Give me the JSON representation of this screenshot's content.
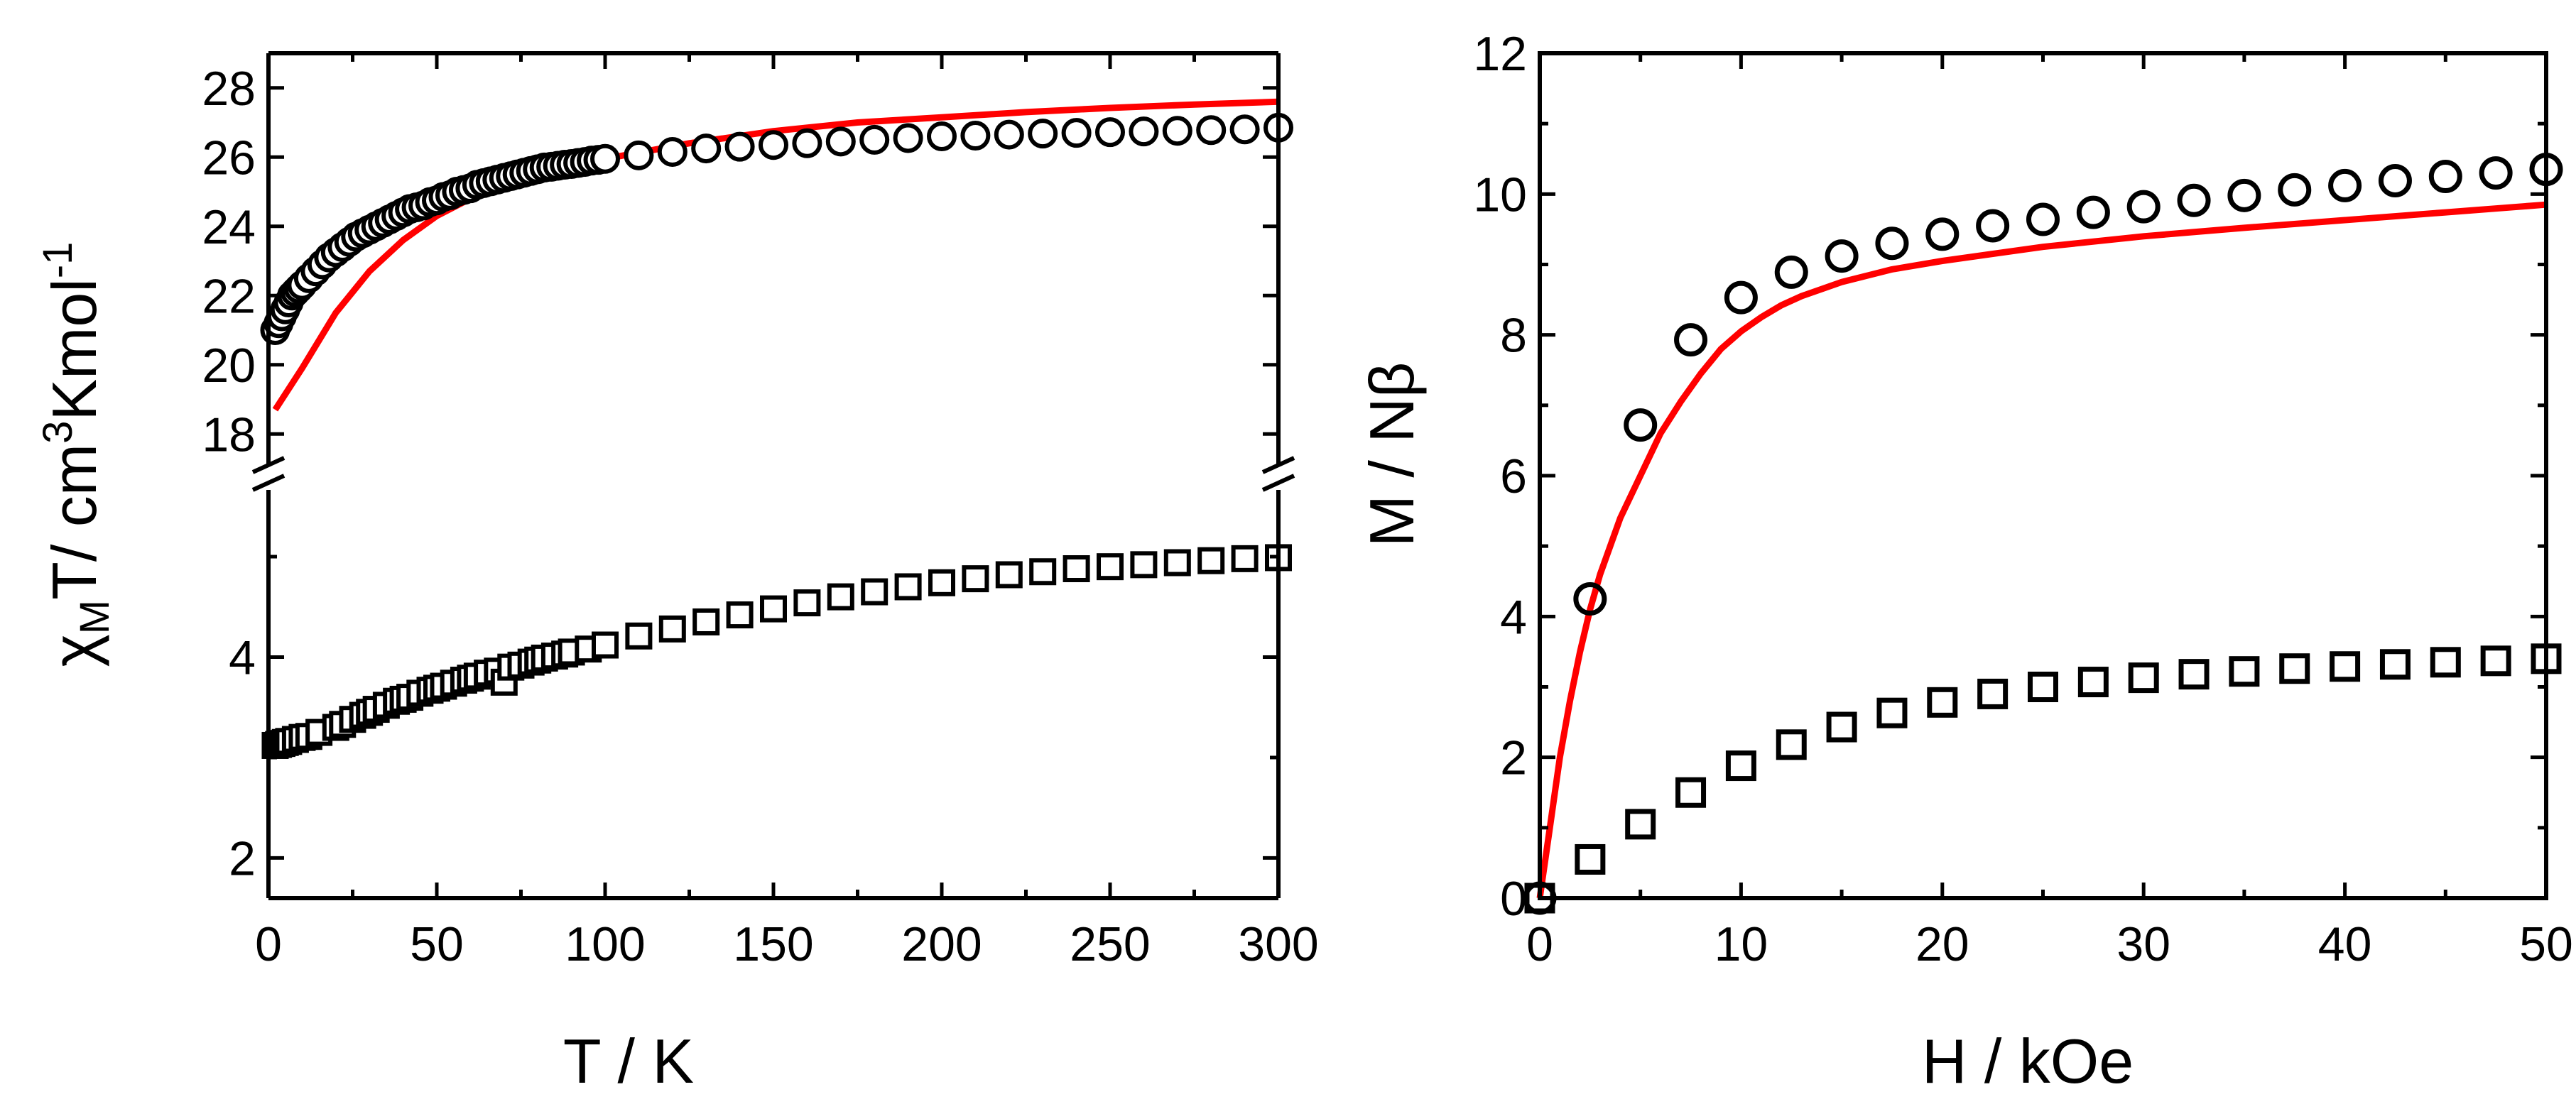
{
  "chart_data": [
    {
      "type": "scatter",
      "panel": "left",
      "xlabel": "T / K",
      "ylabel": {
        "chi": "χ",
        "sub": "M",
        "mid": "T/ cm",
        "sup": "3",
        "tail": "Kmol",
        "sup2": "-1"
      },
      "xlim": [
        0,
        300
      ],
      "x_ticks": [
        "0",
        "50",
        "100",
        "150",
        "200",
        "250",
        "300"
      ],
      "upper_axis": {
        "ylim": [
          17,
          29
        ],
        "y_ticks": [
          "18",
          "20",
          "22",
          "24",
          "26",
          "28"
        ]
      },
      "lower_axis": {
        "ylim": [
          1.6,
          5.7
        ],
        "y_ticks": [
          "2",
          "4"
        ]
      },
      "y_axis_break": true,
      "series": [
        {
          "name": "circles (upper)",
          "marker": "circle",
          "axis": "upper",
          "x": [
            2,
            3,
            4,
            5,
            6,
            7,
            8,
            9,
            10,
            12,
            14,
            16,
            18,
            20,
            22,
            24,
            26,
            28,
            30,
            32,
            34,
            36,
            38,
            40,
            42,
            44,
            46,
            48,
            50,
            52,
            54,
            56,
            58,
            60,
            62,
            64,
            66,
            68,
            70,
            72,
            74,
            76,
            78,
            80,
            82,
            84,
            86,
            88,
            90,
            92,
            94,
            96,
            98,
            100,
            110,
            120,
            130,
            140,
            150,
            160,
            170,
            180,
            190,
            200,
            210,
            220,
            230,
            240,
            250,
            260,
            270,
            280,
            290,
            300
          ],
          "y": [
            21.0,
            21.2,
            21.4,
            21.6,
            21.8,
            22.0,
            22.1,
            22.2,
            22.3,
            22.5,
            22.7,
            22.9,
            23.1,
            23.25,
            23.4,
            23.55,
            23.7,
            23.8,
            23.9,
            24.0,
            24.1,
            24.2,
            24.3,
            24.4,
            24.5,
            24.55,
            24.6,
            24.7,
            24.75,
            24.85,
            24.9,
            25.0,
            25.05,
            25.1,
            25.2,
            25.25,
            25.3,
            25.35,
            25.4,
            25.45,
            25.5,
            25.55,
            25.6,
            25.65,
            25.7,
            25.72,
            25.75,
            25.78,
            25.8,
            25.83,
            25.86,
            25.9,
            25.92,
            25.95,
            26.05,
            26.15,
            26.25,
            26.3,
            26.35,
            26.4,
            26.45,
            26.5,
            26.55,
            26.6,
            26.62,
            26.65,
            26.68,
            26.7,
            26.72,
            26.74,
            26.76,
            26.78,
            26.8,
            26.85
          ]
        },
        {
          "name": "fit (upper)",
          "style": "line",
          "color": "#ff0000",
          "axis": "upper",
          "x": [
            2,
            10,
            20,
            30,
            40,
            50,
            60,
            70,
            80,
            90,
            100,
            125,
            150,
            175,
            200,
            225,
            250,
            275,
            300
          ],
          "y": [
            18.7,
            19.9,
            21.5,
            22.7,
            23.6,
            24.3,
            24.8,
            25.15,
            25.5,
            25.75,
            25.95,
            26.4,
            26.75,
            27.0,
            27.15,
            27.3,
            27.42,
            27.52,
            27.6
          ]
        },
        {
          "name": "squares (lower)",
          "marker": "square",
          "axis": "lower",
          "x": [
            2,
            3,
            4,
            5,
            6,
            8,
            10,
            12,
            15,
            20,
            22,
            25,
            28,
            30,
            32,
            35,
            38,
            40,
            42,
            45,
            48,
            50,
            52,
            55,
            58,
            60,
            62,
            65,
            68,
            70,
            72,
            75,
            78,
            80,
            82,
            85,
            88,
            90,
            95,
            100,
            110,
            120,
            130,
            140,
            150,
            160,
            170,
            180,
            190,
            200,
            210,
            220,
            230,
            240,
            250,
            260,
            270,
            280,
            290,
            300
          ],
          "y": [
            3.12,
            3.13,
            3.14,
            3.15,
            3.16,
            3.18,
            3.2,
            3.21,
            3.25,
            3.3,
            3.33,
            3.38,
            3.42,
            3.45,
            3.48,
            3.52,
            3.56,
            3.58,
            3.6,
            3.64,
            3.67,
            3.69,
            3.71,
            3.74,
            3.77,
            3.79,
            3.81,
            3.84,
            3.86,
            3.75,
            3.9,
            3.92,
            3.95,
            3.97,
            3.99,
            4.01,
            4.03,
            4.05,
            4.08,
            4.12,
            4.21,
            4.28,
            4.35,
            4.42,
            4.48,
            4.54,
            4.6,
            4.65,
            4.7,
            4.74,
            4.78,
            4.82,
            4.85,
            4.88,
            4.9,
            4.92,
            4.94,
            4.96,
            4.98,
            4.99
          ]
        }
      ]
    },
    {
      "type": "scatter",
      "panel": "right",
      "xlabel": "H / kOe",
      "ylabel": {
        "main": "M / Nβ"
      },
      "xlim": [
        0,
        50
      ],
      "ylim": [
        0,
        12
      ],
      "x_ticks": [
        "0",
        "10",
        "20",
        "30",
        "40",
        "50"
      ],
      "y_ticks": [
        "0",
        "2",
        "4",
        "6",
        "8",
        "10",
        "12"
      ],
      "series": [
        {
          "name": "circles",
          "marker": "circle",
          "x": [
            0,
            2.5,
            5,
            7.5,
            10,
            12.5,
            15,
            17.5,
            20,
            22.5,
            25,
            27.5,
            30,
            32.5,
            35,
            37.5,
            40,
            42.5,
            45,
            47.5,
            50
          ],
          "y": [
            0,
            4.25,
            6.72,
            7.93,
            8.53,
            8.89,
            9.12,
            9.3,
            9.43,
            9.55,
            9.64,
            9.74,
            9.82,
            9.91,
            9.98,
            10.06,
            10.12,
            10.19,
            10.25,
            10.3,
            10.35
          ]
        },
        {
          "name": "fit",
          "style": "line",
          "color": "#ff0000",
          "x": [
            0,
            0.5,
            1,
            1.5,
            2,
            2.5,
            3,
            4,
            5,
            6,
            7,
            8,
            9,
            10,
            11,
            12,
            13,
            15,
            17.5,
            20,
            25,
            30,
            35,
            40,
            45,
            50
          ],
          "y": [
            0,
            1.0,
            2.0,
            2.8,
            3.5,
            4.1,
            4.6,
            5.4,
            6.0,
            6.6,
            7.05,
            7.45,
            7.8,
            8.05,
            8.25,
            8.42,
            8.55,
            8.75,
            8.93,
            9.05,
            9.25,
            9.4,
            9.52,
            9.63,
            9.74,
            9.85
          ]
        },
        {
          "name": "squares",
          "marker": "square",
          "x": [
            0,
            2.5,
            5,
            7.5,
            10,
            12.5,
            15,
            17.5,
            20,
            22.5,
            25,
            27.5,
            30,
            32.5,
            35,
            37.5,
            40,
            42.5,
            45,
            47.5,
            50
          ],
          "y": [
            0,
            0.55,
            1.05,
            1.5,
            1.88,
            2.18,
            2.43,
            2.63,
            2.78,
            2.9,
            3.0,
            3.07,
            3.13,
            3.18,
            3.22,
            3.26,
            3.29,
            3.32,
            3.35,
            3.37,
            3.4
          ]
        }
      ]
    }
  ]
}
